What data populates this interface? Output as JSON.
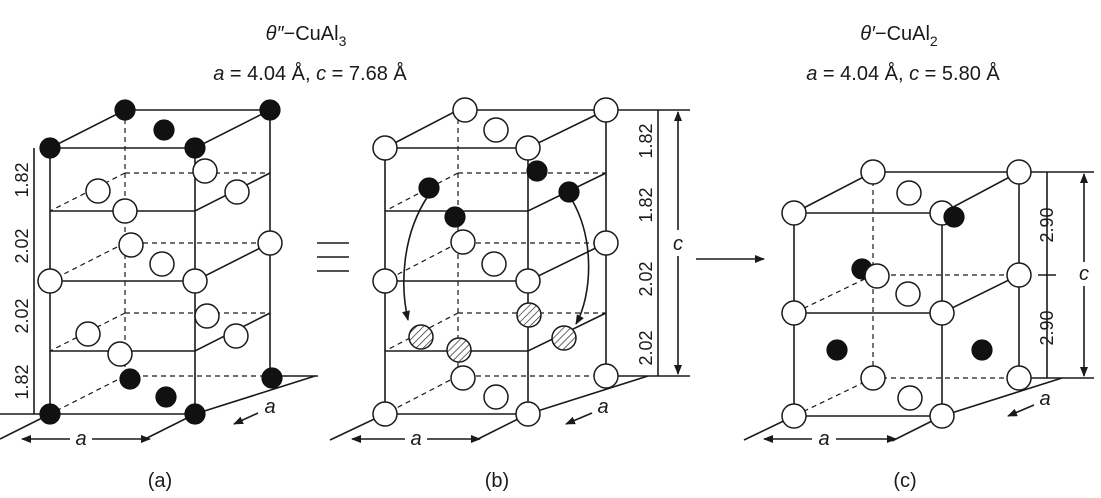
{
  "titles": {
    "theta_dp": {
      "greek": "θ″",
      "sep": "−",
      "formula": "CuAl",
      "sub": "3"
    },
    "theta_p": {
      "greek": "θ′",
      "sep": "−",
      "formula": "CuAl",
      "sub": "2"
    },
    "params_ab": {
      "a_sym": "a",
      "a_val": " = 4.04 Å, ",
      "c_sym": "c",
      "c_val": " = 7.68 Å"
    },
    "params_c": {
      "a_sym": "a",
      "a_val": " = 4.04 Å, ",
      "c_sym": "c",
      "c_val": " = 5.80 Å"
    }
  },
  "panel_a": {
    "caption": "(a)",
    "spacings": [
      "1.82",
      "2.02",
      "2.02",
      "1.82"
    ],
    "a_bottom": "a",
    "a_depth": "a"
  },
  "panel_b": {
    "caption": "(b)",
    "spacings": [
      "1.82",
      "1.82",
      "2.02",
      "2.02"
    ],
    "c_label": "c",
    "a_bottom": "a",
    "a_depth": "a"
  },
  "panel_c": {
    "caption": "(c)",
    "spacings": [
      "2.90",
      "2.90"
    ],
    "c_label": "c",
    "a_bottom": "a",
    "a_depth": "a"
  },
  "colors": {
    "line": "#1a1a1a",
    "solid_atom": "#111111",
    "open_atom": "#ffffff"
  }
}
